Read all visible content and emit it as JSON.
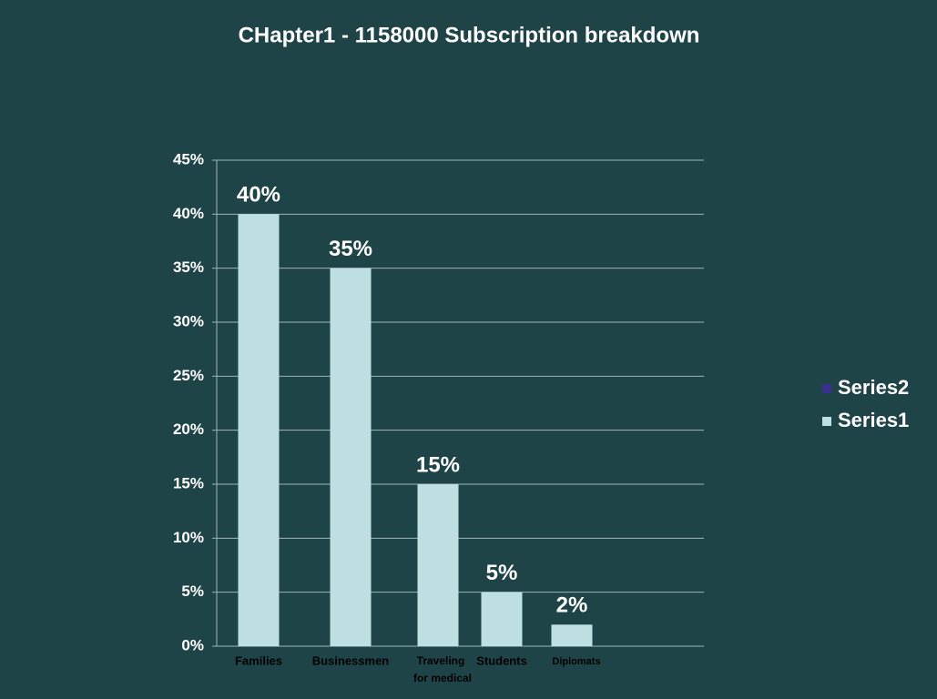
{
  "chart_data": {
    "type": "bar",
    "title": "CHapter1 - 1158000 Subscription breakdown",
    "categories": [
      "Families",
      "Businessmen",
      "Traveling for medical",
      "Students",
      "Diplomats"
    ],
    "series": [
      {
        "name": "Series1",
        "color": "#bfe0e2",
        "values": [
          40,
          35,
          15,
          5,
          2
        ],
        "value_labels": [
          "40%",
          "35%",
          "15%",
          "5%",
          "2%"
        ]
      },
      {
        "name": "Series2",
        "color": "#3b2f8f",
        "values": [
          null,
          null,
          null,
          null,
          null
        ]
      }
    ],
    "ylim": [
      0,
      45
    ],
    "yticks": [
      {
        "value": 0,
        "label": "0%"
      },
      {
        "value": 5,
        "label": "5%"
      },
      {
        "value": 10,
        "label": "10%"
      },
      {
        "value": 15,
        "label": "15%"
      },
      {
        "value": 20,
        "label": "20%"
      },
      {
        "value": 25,
        "label": "25%"
      },
      {
        "value": 30,
        "label": "30%"
      },
      {
        "value": 35,
        "label": "35%"
      },
      {
        "value": 40,
        "label": "40%"
      },
      {
        "value": 45,
        "label": "45%"
      }
    ],
    "grid": true,
    "legend": "right"
  }
}
